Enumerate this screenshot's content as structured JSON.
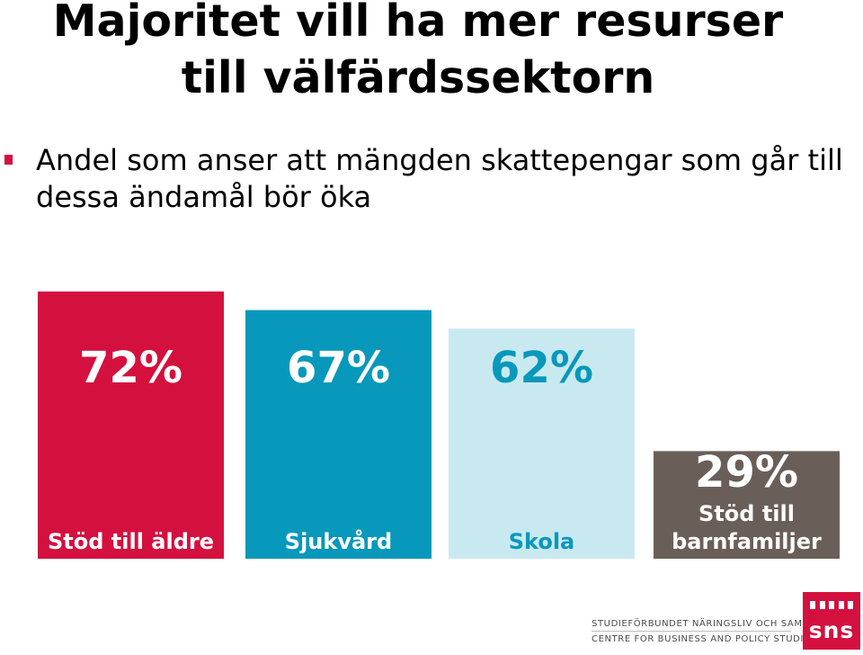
{
  "title_line1": "Majoritet vill ha mer resurser",
  "title_line2": "till välfärdssektorn",
  "bullet": "Andel som anser att mängden skattepengar som går till dessa ändamål bör öka",
  "chart_data": {
    "type": "bar",
    "categories": [
      "Stöd till äldre",
      "Sjukvård",
      "Skola",
      "Stöd till barnfamiljer"
    ],
    "values": [
      72,
      67,
      62,
      29
    ],
    "value_labels": [
      "72%",
      "67%",
      "62%",
      "29%"
    ],
    "ylim": [
      0,
      72
    ],
    "colors": [
      "#d4103f",
      "#0898bb",
      "#c9e9f1",
      "#6a5f58"
    ],
    "label_colors": [
      "#ffffff",
      "#ffffff",
      "#0898bb",
      "#ffffff"
    ],
    "category_colors": [
      "#ffffff",
      "#ffffff",
      "#0898bb",
      "#ffffff"
    ]
  },
  "footer": {
    "line1": "STUDIEFÖRBUNDET NÄRINGSLIV OCH SAMHÄLLE",
    "line2": "CENTRE FOR BUSINESS AND POLICY STUDIES",
    "logo": "sns"
  }
}
